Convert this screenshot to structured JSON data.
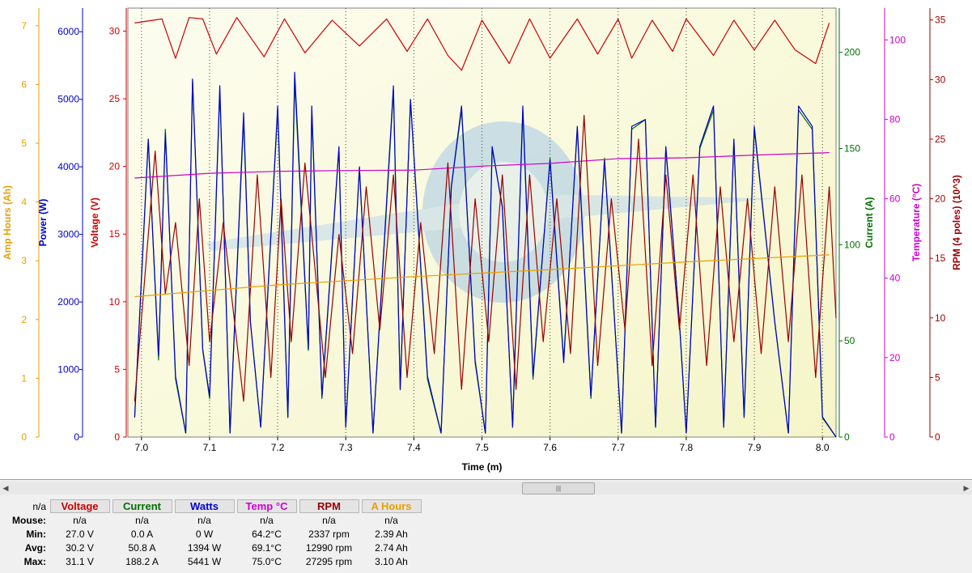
{
  "chart_data": {
    "type": "line",
    "xlabel": "Time (m)",
    "xlim": [
      6.98,
      8.02
    ],
    "x_ticks": [
      "7.0",
      "7.1",
      "7.2",
      "7.3",
      "7.4",
      "7.5",
      "7.6",
      "7.7",
      "7.8",
      "7.9",
      "8.0"
    ],
    "grid": "vertical dotted lines",
    "axes": [
      {
        "id": "amphours",
        "label": "Amp Hours (Ah)",
        "side": "left",
        "color": "#e8a000",
        "range": [
          0,
          7.3
        ],
        "ticks": [
          "0",
          "1",
          "2",
          "3",
          "4",
          "5",
          "6",
          "7"
        ]
      },
      {
        "id": "power",
        "label": "Power (W)",
        "side": "left",
        "color": "#0000cc",
        "range": [
          0,
          6350
        ],
        "ticks": [
          "0",
          "1000",
          "2000",
          "3000",
          "4000",
          "5000",
          "6000"
        ]
      },
      {
        "id": "voltage",
        "label": "Voltage (V)",
        "side": "left",
        "color": "#cc0000",
        "range": [
          0,
          31.7
        ],
        "ticks": [
          "0",
          "5",
          "10",
          "15",
          "20",
          "25",
          "30"
        ]
      },
      {
        "id": "current",
        "label": "Current (A)",
        "side": "right",
        "color": "#007000",
        "range": [
          0,
          223
        ],
        "ticks": [
          "0",
          "50",
          "100",
          "150",
          "200"
        ]
      },
      {
        "id": "temperature",
        "label": "Temperature (°C)",
        "side": "right",
        "color": "#cc00cc",
        "range": [
          0,
          108
        ],
        "ticks": [
          "0",
          "20",
          "40",
          "60",
          "80",
          "100"
        ]
      },
      {
        "id": "rpm",
        "label": "RPM (4 poles) (10^3)",
        "side": "right",
        "color": "#990000",
        "range": [
          0,
          36
        ],
        "ticks": [
          "0",
          "5",
          "10",
          "15",
          "20",
          "25",
          "30",
          "35"
        ]
      }
    ],
    "series": [
      {
        "name": "Voltage",
        "axis": "voltage",
        "color": "#cc0000",
        "x": [
          6.99,
          7.03,
          7.05,
          7.07,
          7.09,
          7.11,
          7.14,
          7.18,
          7.21,
          7.24,
          7.28,
          7.32,
          7.36,
          7.39,
          7.42,
          7.45,
          7.47,
          7.5,
          7.54,
          7.57,
          7.6,
          7.64,
          7.67,
          7.7,
          7.72,
          7.75,
          7.78,
          7.8,
          7.84,
          7.87,
          7.9,
          7.93,
          7.96,
          7.99,
          8.01
        ],
        "values": [
          30.6,
          30.9,
          28.0,
          31.0,
          30.9,
          28.3,
          31.0,
          28.1,
          30.9,
          28.4,
          30.8,
          28.9,
          30.9,
          28.5,
          30.9,
          28.2,
          27.1,
          30.8,
          27.6,
          30.9,
          28.0,
          30.9,
          28.3,
          30.9,
          28.0,
          30.8,
          28.5,
          30.9,
          28.2,
          30.8,
          28.6,
          30.8,
          28.6,
          27.6,
          30.6
        ]
      },
      {
        "name": "Current",
        "axis": "current",
        "color": "#007000",
        "x": [
          6.99,
          7.01,
          7.025,
          7.035,
          7.05,
          7.065,
          7.075,
          7.09,
          7.1,
          7.115,
          7.13,
          7.15,
          7.16,
          7.175,
          7.2,
          7.215,
          7.225,
          7.245,
          7.25,
          7.265,
          7.29,
          7.3,
          7.32,
          7.34,
          7.37,
          7.38,
          7.395,
          7.42,
          7.44,
          7.455,
          7.47,
          7.49,
          7.505,
          7.515,
          7.53,
          7.545,
          7.56,
          7.575,
          7.6,
          7.62,
          7.64,
          7.66,
          7.68,
          7.705,
          7.72,
          7.74,
          7.755,
          7.77,
          7.79,
          7.8,
          7.82,
          7.84,
          7.855,
          7.87,
          7.885,
          7.9,
          7.93,
          7.95,
          7.965,
          7.985,
          8.0,
          8.02
        ],
        "values": [
          10,
          155,
          40,
          160,
          30,
          2,
          185,
          45,
          20,
          180,
          2,
          165,
          60,
          5,
          170,
          10,
          185,
          45,
          170,
          20,
          150,
          5,
          140,
          2,
          180,
          25,
          175,
          30,
          2,
          130,
          170,
          40,
          2,
          150,
          120,
          5,
          170,
          30,
          145,
          40,
          160,
          20,
          145,
          2,
          160,
          165,
          5,
          150,
          60,
          2,
          150,
          170,
          5,
          155,
          10,
          160,
          60,
          2,
          170,
          160,
          10,
          0
        ]
      },
      {
        "name": "Watts",
        "axis": "power",
        "color": "#0000cc",
        "x": [
          6.99,
          7.01,
          7.025,
          7.035,
          7.05,
          7.065,
          7.075,
          7.09,
          7.1,
          7.115,
          7.13,
          7.15,
          7.16,
          7.175,
          7.2,
          7.215,
          7.225,
          7.245,
          7.25,
          7.265,
          7.29,
          7.3,
          7.32,
          7.34,
          7.37,
          7.38,
          7.395,
          7.42,
          7.44,
          7.455,
          7.47,
          7.49,
          7.505,
          7.515,
          7.53,
          7.545,
          7.56,
          7.575,
          7.6,
          7.62,
          7.64,
          7.66,
          7.68,
          7.705,
          7.72,
          7.74,
          7.755,
          7.77,
          7.79,
          7.8,
          7.82,
          7.84,
          7.855,
          7.87,
          7.885,
          7.9,
          7.93,
          7.95,
          7.965,
          7.985,
          8.0,
          8.02
        ],
        "values": [
          300,
          4400,
          1200,
          4500,
          900,
          60,
          5300,
          1300,
          600,
          5200,
          60,
          4800,
          1700,
          150,
          4900,
          300,
          5400,
          1300,
          4900,
          600,
          4300,
          150,
          4000,
          60,
          5200,
          700,
          5000,
          900,
          60,
          3700,
          4900,
          1100,
          60,
          4300,
          3400,
          150,
          4900,
          900,
          4100,
          1100,
          4600,
          600,
          4100,
          60,
          4600,
          4700,
          150,
          4300,
          1700,
          60,
          4300,
          4900,
          150,
          4400,
          300,
          4600,
          1700,
          60,
          4900,
          4600,
          300,
          0
        ]
      },
      {
        "name": "Temp °C",
        "axis": "temperature",
        "color": "#cc00cc",
        "x": [
          6.99,
          7.1,
          7.2,
          7.3,
          7.4,
          7.5,
          7.6,
          7.7,
          7.8,
          7.9,
          8.01
        ],
        "values": [
          65.2,
          66.4,
          66.9,
          67.1,
          67.2,
          68.2,
          68.9,
          70.1,
          70.3,
          71.0,
          71.6
        ]
      },
      {
        "name": "RPM",
        "axis": "rpm",
        "color": "#990000",
        "x": [
          6.99,
          7.02,
          7.035,
          7.05,
          7.07,
          7.085,
          7.1,
          7.12,
          7.15,
          7.17,
          7.19,
          7.205,
          7.22,
          7.24,
          7.27,
          7.29,
          7.31,
          7.33,
          7.35,
          7.37,
          7.39,
          7.41,
          7.43,
          7.45,
          7.47,
          7.49,
          7.51,
          7.53,
          7.55,
          7.57,
          7.59,
          7.61,
          7.63,
          7.65,
          7.67,
          7.69,
          7.71,
          7.73,
          7.75,
          7.77,
          7.79,
          7.81,
          7.83,
          7.85,
          7.87,
          7.89,
          7.91,
          7.93,
          7.95,
          7.97,
          7.99,
          8.01,
          8.02
        ],
        "values": [
          3,
          24,
          12,
          18,
          6,
          20,
          8,
          18,
          3,
          22,
          5,
          20,
          8,
          23,
          5,
          17,
          7,
          21,
          9,
          22,
          5,
          18,
          7,
          23,
          4,
          20,
          8,
          22,
          4,
          22,
          8,
          20,
          7,
          27,
          6,
          20,
          9,
          25,
          6,
          22,
          9,
          22,
          6,
          21,
          8,
          20,
          7,
          21,
          8,
          22,
          5,
          21,
          10
        ]
      },
      {
        "name": "A Hours",
        "axis": "amphours",
        "color": "#e8a000",
        "x": [
          6.99,
          7.2,
          7.4,
          7.6,
          7.8,
          8.01
        ],
        "values": [
          2.39,
          2.59,
          2.73,
          2.85,
          2.98,
          3.1
        ]
      }
    ]
  },
  "scroll_thumb_label": "|||",
  "stats": {
    "corner": "n/a",
    "headers": [
      {
        "label": "Voltage",
        "color": "#cc0000"
      },
      {
        "label": "Current",
        "color": "#007000"
      },
      {
        "label": "Watts",
        "color": "#0000cc"
      },
      {
        "label": "Temp °C",
        "color": "#cc00cc"
      },
      {
        "label": "RPM",
        "color": "#990000"
      },
      {
        "label": "A Hours",
        "color": "#e8a000"
      }
    ],
    "rows": [
      {
        "label": "Mouse:",
        "values": [
          "n/a",
          "n/a",
          "n/a",
          "n/a",
          "n/a",
          "n/a"
        ]
      },
      {
        "label": "Min:",
        "values": [
          "27.0 V",
          "0.0 A",
          "0 W",
          "64.2°C",
          "2337 rpm",
          "2.39 Ah"
        ]
      },
      {
        "label": "Avg:",
        "values": [
          "30.2 V",
          "50.8 A",
          "1394 W",
          "69.1°C",
          "12990 rpm",
          "2.74 Ah"
        ]
      },
      {
        "label": "Max:",
        "values": [
          "31.1 V",
          "188.2 A",
          "5441 W",
          "75.0°C",
          "27295 rpm",
          "3.10 Ah"
        ]
      }
    ]
  }
}
